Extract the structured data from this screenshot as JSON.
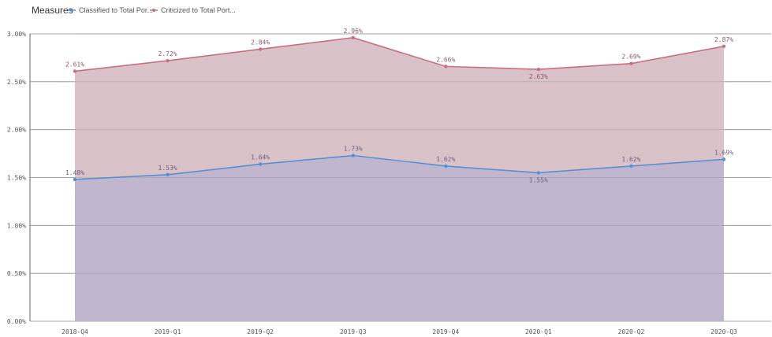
{
  "chart_data": {
    "type": "area",
    "legend": {
      "title": "Measures",
      "position": "top-left"
    },
    "categories": [
      "2018-Q4",
      "2019-Q1",
      "2019-Q2",
      "2019-Q3",
      "2019-Q4",
      "2020-Q1",
      "2020-Q2",
      "2020-Q3"
    ],
    "series": [
      {
        "name": "Classified to Total Por...",
        "color": "#5b8fd4",
        "fill": "#c0b7cf",
        "values": [
          1.48,
          1.53,
          1.64,
          1.73,
          1.62,
          1.55,
          1.62,
          1.69
        ],
        "labels": [
          "1.48%",
          "1.53%",
          "1.64%",
          "1.73%",
          "1.62%",
          "1.55%",
          "1.62%",
          "1.69%"
        ]
      },
      {
        "name": "Criticized to Total Port...",
        "color": "#c8707e",
        "fill": "#d9c3c8",
        "values": [
          2.61,
          2.72,
          2.84,
          2.96,
          2.66,
          2.63,
          2.69,
          2.87
        ],
        "labels": [
          "2.61%",
          "2.72%",
          "2.84%",
          "2.96%",
          "2.66%",
          "2.63%",
          "2.69%",
          "2.87%"
        ]
      }
    ],
    "ylim": [
      0,
      3
    ],
    "yticks": [
      0,
      0.5,
      1.0,
      1.5,
      2.0,
      2.5,
      3.0
    ],
    "ytick_labels": [
      "0.00%",
      "0.50%",
      "1.00%",
      "1.50%",
      "2.00%",
      "2.50%",
      "3.00%"
    ],
    "grid": true,
    "xlabel": "",
    "ylabel": ""
  }
}
